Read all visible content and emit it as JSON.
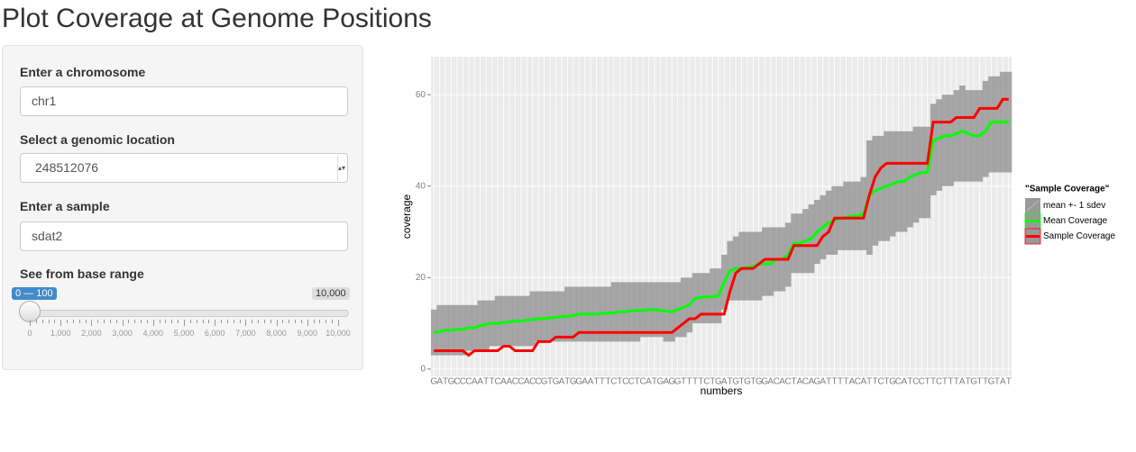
{
  "title": "Plot Coverage at Genome Positions",
  "sidebar": {
    "chromosome": {
      "label": "Enter a chromosome",
      "value": "chr1"
    },
    "location": {
      "label": "Select a genomic location",
      "value": "248512076"
    },
    "sample": {
      "label": "Enter a sample",
      "value": "sdat2"
    },
    "range": {
      "label": "See from base range",
      "value_label": "0 — 100",
      "max_label": "10,000",
      "ticks": [
        "0",
        "1,000",
        "2,000",
        "3,000",
        "4,000",
        "5,000",
        "6,000",
        "7,000",
        "8,000",
        "9,000",
        "10,000"
      ]
    }
  },
  "chart_data": {
    "type": "line",
    "x_label": "numbers",
    "y_label": "coverage",
    "legend_title": "\"Sample Coverage\"",
    "legend": "right",
    "grid": true,
    "categories": [
      "G",
      "A",
      "T",
      "G",
      "C",
      "C",
      "C",
      "A",
      "A",
      "T",
      "T",
      "C",
      "A",
      "A",
      "C",
      "C",
      "A",
      "C",
      "C",
      "G",
      "T",
      "G",
      "A",
      "T",
      "G",
      "G",
      "A",
      "A",
      "T",
      "T",
      "T",
      "C",
      "T",
      "C",
      "C",
      "T",
      "C",
      "A",
      "T",
      "G",
      "A",
      "G",
      "G",
      "T",
      "T",
      "T",
      "T",
      "C",
      "T",
      "G",
      "A",
      "T",
      "G",
      "T",
      "G",
      "T",
      "G",
      "G",
      "A",
      "C",
      "A",
      "C",
      "T",
      "A",
      "C",
      "A",
      "G",
      "A",
      "T",
      "T",
      "T",
      "T",
      "A",
      "C",
      "A",
      "T",
      "T",
      "C",
      "T",
      "G",
      "C",
      "A",
      "T",
      "C",
      "C",
      "T",
      "T",
      "C",
      "T",
      "T",
      "T",
      "A",
      "T",
      "G",
      "T",
      "T",
      "G",
      "T",
      "A",
      "T"
    ],
    "ylim": [
      -1.6,
      68.3
    ],
    "yticks": [
      0,
      20,
      40,
      60
    ],
    "series": [
      {
        "name": "mean +- 1 sdev",
        "color": "#999999",
        "upper": [
          13,
          14,
          14,
          14,
          14,
          14,
          14,
          14,
          15,
          15,
          15,
          16,
          16,
          16,
          16,
          16,
          16,
          17,
          17,
          17,
          17,
          17,
          17,
          18,
          18,
          18,
          18,
          18,
          18,
          18,
          18,
          19,
          19,
          19,
          19,
          19,
          19,
          19,
          19,
          19,
          19,
          19,
          19,
          20,
          20,
          21,
          21,
          21,
          22,
          22,
          25,
          28,
          29,
          30,
          30,
          30,
          30,
          31,
          31,
          31,
          31,
          32,
          34,
          34,
          35,
          36,
          37,
          38,
          39,
          40,
          40,
          41,
          41,
          41,
          42,
          50,
          51,
          51,
          52,
          52,
          52,
          52,
          52,
          53,
          53,
          53,
          58,
          59,
          60,
          60,
          61,
          62,
          61,
          61,
          61,
          63,
          64,
          64,
          65,
          65
        ],
        "lower": [
          3,
          3,
          3,
          3,
          3,
          3,
          4,
          4,
          4,
          4,
          5,
          5,
          5,
          5,
          5,
          5,
          5,
          5,
          6,
          6,
          6,
          6,
          6,
          6,
          6,
          6,
          6,
          6,
          6,
          6,
          6,
          6,
          6,
          6,
          6,
          6,
          7,
          7,
          7,
          7,
          6,
          6,
          7,
          7,
          8,
          10,
          10,
          10,
          10,
          10,
          13,
          15,
          15,
          15,
          15,
          15,
          15,
          16,
          16,
          17,
          17,
          18,
          21,
          21,
          21,
          21,
          23,
          24,
          25,
          25,
          26,
          26,
          26,
          26,
          26,
          25,
          27,
          28,
          28,
          29,
          30,
          30,
          31,
          32,
          33,
          33,
          38,
          39,
          40,
          40,
          41,
          41,
          41,
          41,
          41,
          42,
          43,
          43,
          43,
          43
        ]
      },
      {
        "name": "Mean Coverage",
        "color": "#00ff00",
        "values": [
          8,
          8.2,
          8.5,
          8.5,
          8.7,
          8.7,
          9,
          9,
          9.5,
          9.8,
          10,
          10,
          10.2,
          10.3,
          10.5,
          10.5,
          10.7,
          10.8,
          11,
          11,
          11.2,
          11.3,
          11.5,
          11.5,
          11.7,
          12,
          12,
          12,
          12,
          12.2,
          12.2,
          12.3,
          12.5,
          12.5,
          12.7,
          12.8,
          12.8,
          13,
          13,
          12.8,
          12.7,
          12.5,
          13,
          13.5,
          14,
          15.5,
          15.7,
          15.8,
          15.8,
          16,
          19,
          21.5,
          22,
          22,
          22.2,
          22.5,
          23,
          23,
          23,
          24,
          24,
          25,
          27.5,
          27.5,
          28,
          28.5,
          30,
          31,
          32,
          32.5,
          33,
          33.2,
          33.5,
          33.5,
          34,
          38,
          39,
          39.5,
          40,
          40.5,
          41,
          41,
          42,
          42.5,
          43,
          43,
          50,
          50.5,
          51,
          51,
          51.5,
          52,
          51.5,
          51,
          51,
          52,
          54,
          54,
          54,
          54
        ]
      },
      {
        "name": "Sample Coverage",
        "color": "#ff0000",
        "values": [
          4,
          4,
          4,
          4,
          4,
          4,
          3,
          4,
          4,
          4,
          4,
          4,
          5,
          5,
          4,
          4,
          4,
          4,
          6,
          6,
          6,
          7,
          7,
          7,
          7,
          8,
          8,
          8,
          8,
          8,
          8,
          8,
          8,
          8,
          8,
          8,
          8,
          8,
          8,
          8,
          8,
          8,
          9,
          10,
          11,
          11,
          12,
          12,
          12,
          12,
          12,
          17,
          21,
          22,
          22,
          22,
          23,
          24,
          24,
          24,
          24,
          24,
          27,
          27,
          27,
          27,
          27,
          29,
          30,
          33,
          33,
          33,
          33,
          33,
          33,
          38,
          42,
          44,
          45,
          45,
          45,
          45,
          45,
          45,
          45,
          45,
          54,
          54,
          54,
          54,
          55,
          55,
          55,
          55,
          57,
          57,
          57,
          57,
          59,
          59
        ]
      }
    ]
  }
}
